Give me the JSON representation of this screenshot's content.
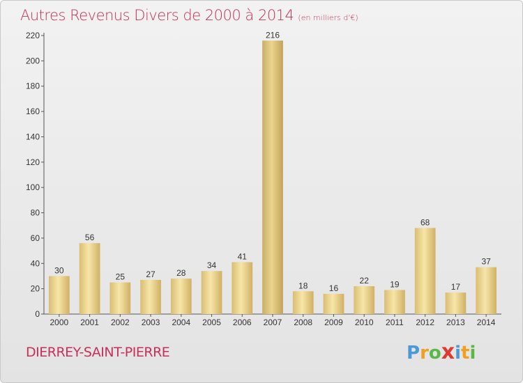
{
  "header": {
    "title": "Autres Revenus Divers de 2000 à 2014",
    "unit": "(en milliers d'€)"
  },
  "footer": {
    "commune": "DIERREY-SAINT-PIERRE"
  },
  "brand": {
    "letters": [
      "P",
      "r",
      "o",
      "x",
      "i",
      "t",
      "i"
    ],
    "colors": [
      "#4a9ad8",
      "#f0a020",
      "#58b848",
      "#e03a30",
      "#4a9ad8",
      "#f0a020",
      "#58b848"
    ]
  },
  "colors": {
    "bar_light": "#f5e2a0",
    "bar_dark": "#d4b56a",
    "title": "#c8305a"
  },
  "chart_data": {
    "type": "bar",
    "categories": [
      "2000",
      "2001",
      "2002",
      "2003",
      "2004",
      "2005",
      "2006",
      "2007",
      "2008",
      "2009",
      "2010",
      "2011",
      "2012",
      "2013",
      "2014"
    ],
    "values": [
      30,
      56,
      25,
      27,
      28,
      34,
      41,
      216,
      18,
      16,
      22,
      19,
      68,
      17,
      37
    ],
    "title": "Autres Revenus Divers de 2000 à 2014",
    "ylim": [
      0,
      220
    ],
    "yticks": [
      0,
      20,
      40,
      60,
      80,
      100,
      120,
      140,
      160,
      180,
      200,
      220
    ],
    "grid": false
  }
}
